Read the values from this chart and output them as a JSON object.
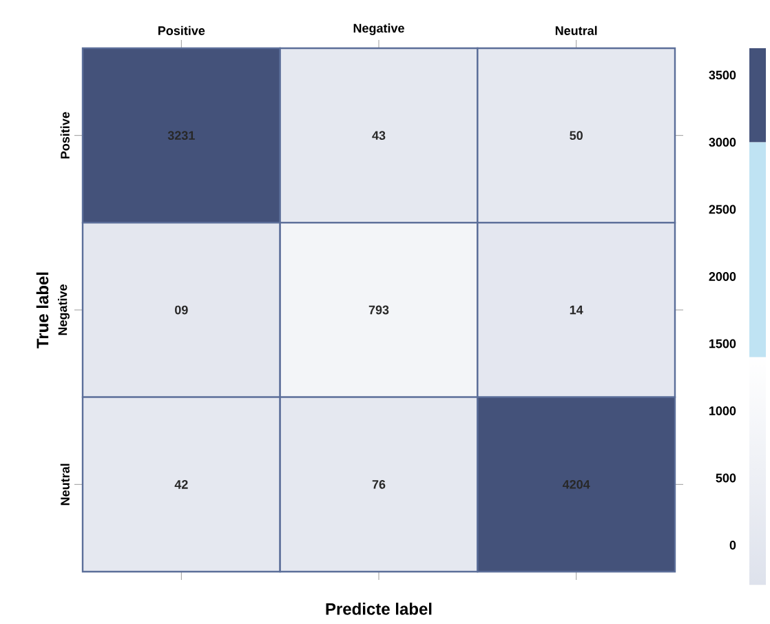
{
  "chart_data": {
    "type": "heatmap",
    "xlabel": "Predicte label",
    "ylabel": "True label",
    "categories": [
      "Positive",
      "Negative",
      "Neutral"
    ],
    "y_categories": [
      "Positive",
      "Negative",
      "Neutral"
    ],
    "cells": [
      [
        3231,
        43,
        50
      ],
      [
        9,
        793,
        14
      ],
      [
        42,
        76,
        4204
      ]
    ],
    "cell_labels": [
      [
        "3231",
        "43",
        "50"
      ],
      [
        "09",
        "793",
        "14"
      ],
      [
        "42",
        "76",
        "4204"
      ]
    ],
    "clim": [
      -300,
      3700
    ],
    "cticks": [
      0,
      500,
      1000,
      1500,
      2000,
      2500,
      3000,
      3500
    ]
  }
}
